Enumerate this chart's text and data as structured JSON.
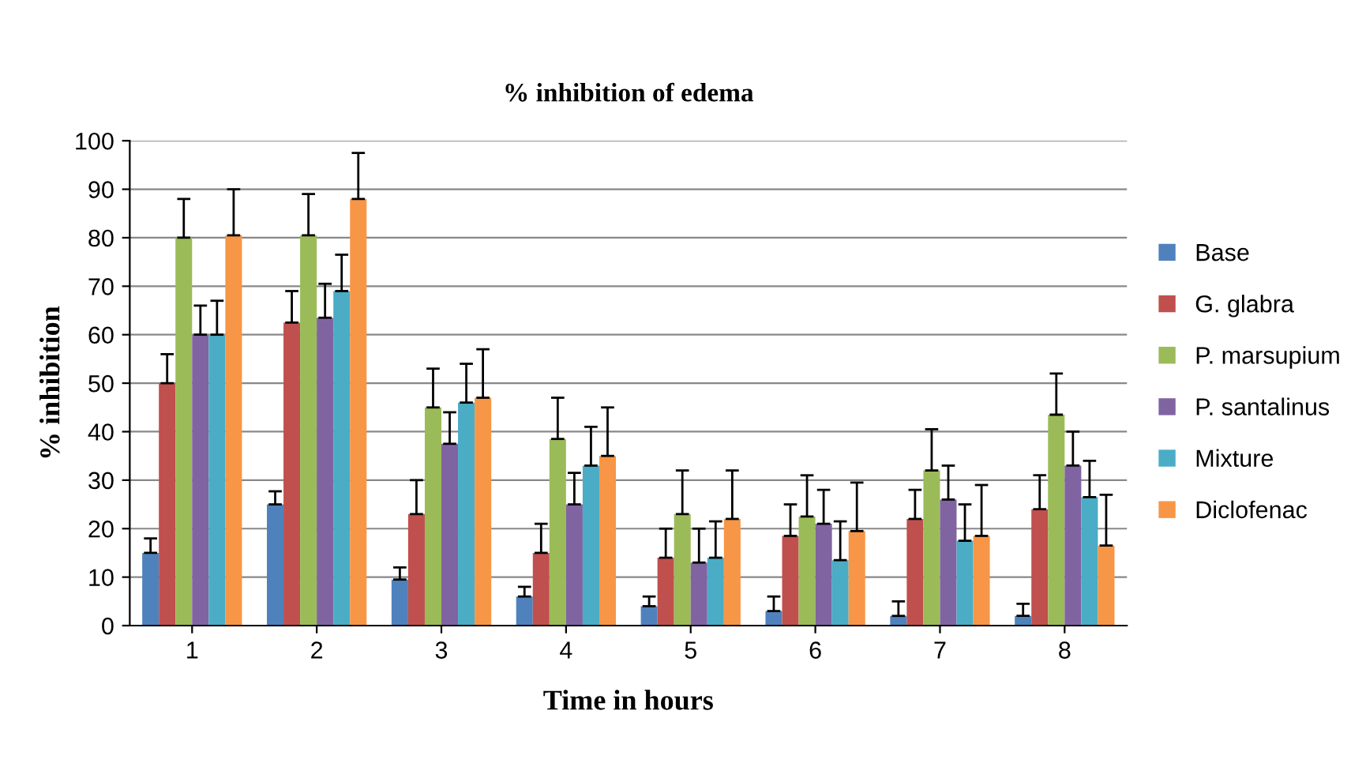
{
  "chart_data": {
    "type": "bar",
    "title": "% inhibition of edema",
    "xlabel": "Time in hours",
    "ylabel": "% inhibition",
    "categories": [
      "1",
      "2",
      "3",
      "4",
      "5",
      "6",
      "7",
      "8"
    ],
    "series": [
      {
        "name": "Base",
        "color": "#4f81bd",
        "values": [
          15,
          25,
          9.5,
          6,
          4,
          3,
          2,
          2
        ],
        "errors": [
          [
            15,
            18
          ],
          [
            25,
            27.7
          ],
          [
            9.5,
            12
          ],
          [
            6,
            8
          ],
          [
            4,
            6
          ],
          [
            3,
            6
          ],
          [
            2,
            5
          ],
          [
            2,
            4.5
          ]
        ]
      },
      {
        "name": "G. glabra",
        "color": "#c0504d",
        "values": [
          50,
          62.5,
          23,
          15,
          14,
          18.5,
          22,
          24
        ],
        "errors": [
          [
            50,
            56
          ],
          [
            62.5,
            69
          ],
          [
            23,
            30
          ],
          [
            15,
            21
          ],
          [
            14,
            20
          ],
          [
            18.5,
            25
          ],
          [
            22,
            28
          ],
          [
            24,
            31
          ]
        ]
      },
      {
        "name": "P. marsupium",
        "color": "#9bbb59",
        "values": [
          80,
          80.5,
          45,
          38.5,
          23,
          22.5,
          32,
          43.5
        ],
        "errors": [
          [
            80,
            88
          ],
          [
            80.5,
            89
          ],
          [
            45,
            53
          ],
          [
            38.5,
            47
          ],
          [
            23,
            32
          ],
          [
            22.5,
            31
          ],
          [
            32,
            40.5
          ],
          [
            43.5,
            52
          ]
        ]
      },
      {
        "name": "P. santalinus",
        "color": "#8064a2",
        "values": [
          60,
          63.5,
          37.5,
          25,
          13,
          21,
          26,
          33
        ],
        "errors": [
          [
            60,
            66
          ],
          [
            63.5,
            70.5
          ],
          [
            37.5,
            44
          ],
          [
            25,
            31.5
          ],
          [
            13,
            20
          ],
          [
            21,
            28
          ],
          [
            26,
            33
          ],
          [
            33,
            40
          ]
        ]
      },
      {
        "name": "Mixture",
        "color": "#4bacc6",
        "values": [
          60,
          69,
          46,
          33,
          14,
          13.5,
          17.5,
          26.5
        ],
        "errors": [
          [
            60,
            67
          ],
          [
            69,
            76.5
          ],
          [
            46,
            54
          ],
          [
            33,
            41
          ],
          [
            14,
            21.5
          ],
          [
            13.5,
            21.5
          ],
          [
            17.5,
            25
          ],
          [
            26.5,
            34
          ]
        ]
      },
      {
        "name": "Diclofenac",
        "color": "#f79646",
        "values": [
          80.5,
          88,
          47,
          35,
          22,
          19.5,
          18.5,
          16.5
        ],
        "errors": [
          [
            80.5,
            90
          ],
          [
            88,
            97.5
          ],
          [
            47,
            57
          ],
          [
            35,
            45
          ],
          [
            22,
            32
          ],
          [
            19.5,
            29.5
          ],
          [
            18.5,
            29
          ],
          [
            16.5,
            27
          ]
        ]
      }
    ],
    "ylim": [
      0,
      100
    ],
    "yticks": [
      0,
      10,
      20,
      30,
      40,
      50,
      60,
      70,
      80,
      90,
      100
    ],
    "grid": "y",
    "legend": "right"
  }
}
